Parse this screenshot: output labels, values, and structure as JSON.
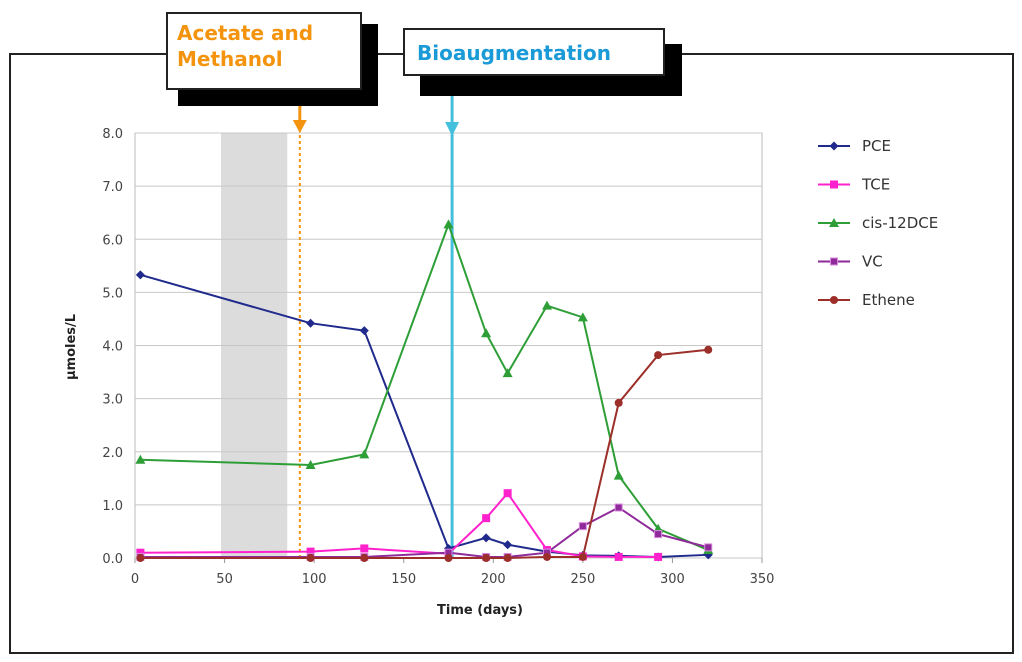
{
  "callouts": {
    "acetate_line1": "Acetate and",
    "acetate_line2": "Methanol",
    "bioaugmentation": "Bioaugmentation"
  },
  "colors": {
    "acetate": "#f4940e",
    "bioaugmentation": "#45c0dc",
    "shade": "#dcdcdc"
  },
  "chart_data": {
    "type": "line",
    "title": "",
    "xlabel": "Time (days)",
    "ylabel": "µmoles/L",
    "xlim": [
      0,
      350
    ],
    "ylim": [
      0,
      8.0
    ],
    "xticks": [
      0,
      50,
      100,
      150,
      200,
      250,
      300,
      350
    ],
    "yticks": [
      "0.0",
      "1.0",
      "2.0",
      "3.0",
      "4.0",
      "5.0",
      "6.0",
      "7.0",
      "8.0"
    ],
    "grid": true,
    "legend_position": "right",
    "shaded_region": [
      48,
      85
    ],
    "annotations": [
      {
        "label": "Acetate and Methanol",
        "x": 92,
        "style": "dotted"
      },
      {
        "label": "Bioaugmentation",
        "x": 177,
        "style": "solid"
      }
    ],
    "series": [
      {
        "name": "PCE",
        "color": "#1f2a8c",
        "marker": "diamond",
        "points": [
          [
            3,
            5.33
          ],
          [
            98,
            4.42
          ],
          [
            128,
            4.28
          ],
          [
            175,
            0.18
          ],
          [
            196,
            0.38
          ],
          [
            208,
            0.25
          ],
          [
            230,
            0.12
          ],
          [
            250,
            0.05
          ],
          [
            270,
            0.04
          ],
          [
            292,
            0.02
          ],
          [
            320,
            0.06
          ]
        ]
      },
      {
        "name": "TCE",
        "color": "#ff22cc",
        "marker": "square",
        "points": [
          [
            3,
            0.1
          ],
          [
            98,
            0.12
          ],
          [
            128,
            0.18
          ],
          [
            175,
            0.08
          ],
          [
            196,
            0.75
          ],
          [
            208,
            1.22
          ],
          [
            230,
            0.15
          ],
          [
            250,
            0.03
          ],
          [
            270,
            0.02
          ],
          [
            292,
            0.02
          ]
        ]
      },
      {
        "name": "cis-12DCE",
        "color": "#2e9e36",
        "marker": "triangle",
        "points": [
          [
            3,
            1.85
          ],
          [
            98,
            1.75
          ],
          [
            128,
            1.95
          ],
          [
            175,
            6.28
          ],
          [
            196,
            4.23
          ],
          [
            208,
            3.48
          ],
          [
            230,
            4.75
          ],
          [
            250,
            4.53
          ],
          [
            270,
            1.55
          ],
          [
            292,
            0.55
          ],
          [
            320,
            0.15
          ]
        ]
      },
      {
        "name": "VC",
        "color": "#8e2a9a",
        "marker": "x",
        "points": [
          [
            3,
            0.02
          ],
          [
            98,
            0.02
          ],
          [
            128,
            0.02
          ],
          [
            175,
            0.1
          ],
          [
            196,
            0.02
          ],
          [
            208,
            0.02
          ],
          [
            230,
            0.1
          ],
          [
            250,
            0.6
          ],
          [
            270,
            0.95
          ],
          [
            292,
            0.45
          ],
          [
            320,
            0.2
          ]
        ]
      },
      {
        "name": "Ethene",
        "color": "#9c2f2a",
        "marker": "circle",
        "points": [
          [
            3,
            0.0
          ],
          [
            98,
            0.0
          ],
          [
            128,
            0.0
          ],
          [
            175,
            0.0
          ],
          [
            196,
            0.0
          ],
          [
            208,
            0.0
          ],
          [
            230,
            0.02
          ],
          [
            250,
            0.02
          ],
          [
            270,
            2.92
          ],
          [
            292,
            3.82
          ],
          [
            320,
            3.92
          ]
        ]
      }
    ]
  }
}
